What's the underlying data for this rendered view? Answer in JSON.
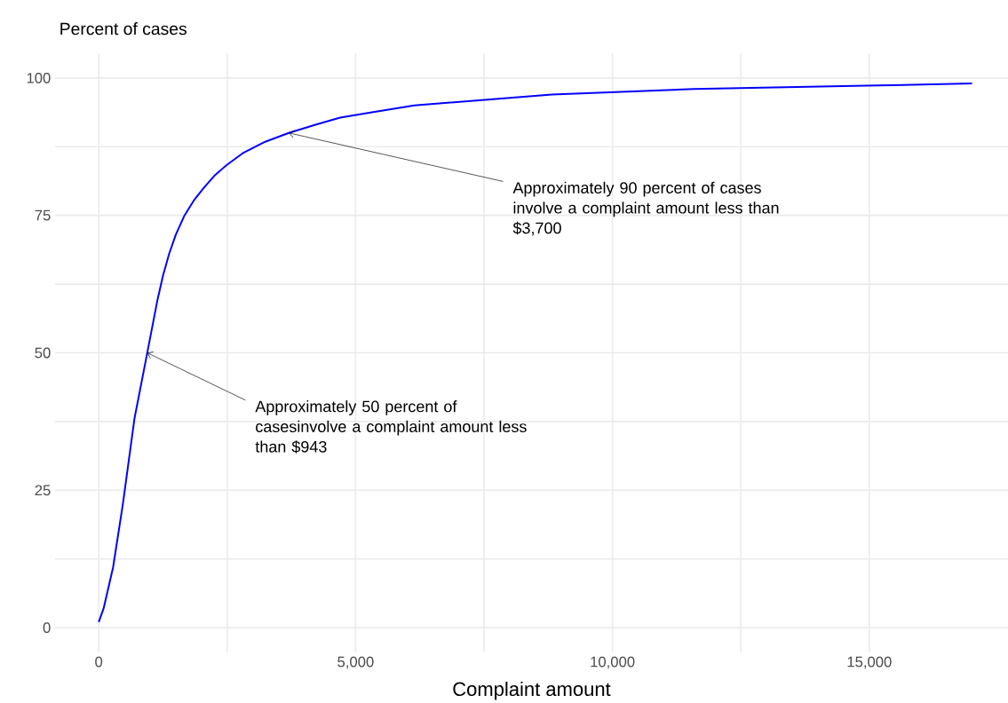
{
  "chart_data": {
    "type": "line",
    "ylabel": "Percent of cases",
    "xlabel": "Complaint amount",
    "x": [
      0,
      95,
      280,
      470,
      695,
      955,
      1145,
      1250,
      1370,
      1500,
      1670,
      1850,
      2045,
      2250,
      2495,
      2800,
      3240,
      3700,
      4220,
      4700,
      5345,
      6145,
      8820,
      11590,
      14930,
      17000
    ],
    "values": [
      1,
      3.5,
      11,
      22.5,
      38,
      50.5,
      59.7,
      64,
      68,
      71.5,
      75,
      77.7,
      80,
      82.2,
      84.2,
      86.3,
      88.4,
      90,
      91.5,
      92.8,
      93.8,
      95,
      97,
      98,
      98.6,
      99
    ],
    "color": "#0000ff",
    "marker": "none",
    "line_style": "solid",
    "xlim": [
      -850,
      17700
    ],
    "ylim": [
      -4.5,
      104.5
    ],
    "xticks": [
      0,
      {
        "value": 5000,
        "label": "5,000"
      },
      {
        "value": 10000,
        "label": "10,000"
      },
      {
        "value": 15000,
        "label": "15,000"
      }
    ],
    "yticks": [
      0,
      25,
      50,
      75,
      100
    ],
    "grid": true,
    "annotations": [
      {
        "text": "Approximately 50 percent of casesinvolve a complaint amount less than $943",
        "x": 943,
        "y": 50
      },
      {
        "text": "Approximately 90 percent of cases involve a complaint amount less than $3,700",
        "x": 3700,
        "y": 90
      }
    ]
  }
}
